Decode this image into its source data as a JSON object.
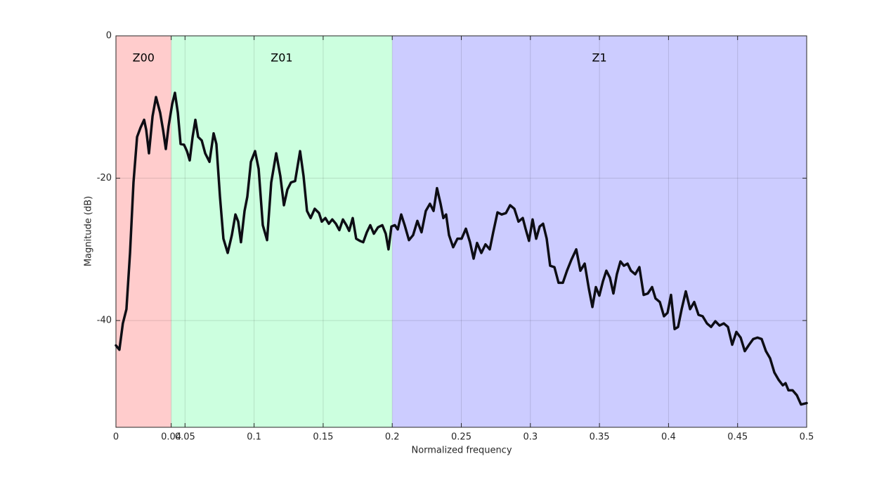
{
  "chart_data": {
    "type": "line",
    "xlabel": "Normalized frequency",
    "ylabel": "Magnitude (dB)",
    "xlim": [
      0,
      0.5
    ],
    "ylim": [
      -55,
      0
    ],
    "xticks": [
      0,
      0.04,
      0.05,
      0.1,
      0.15,
      0.2,
      0.25,
      0.3,
      0.35,
      0.4,
      0.45,
      0.5
    ],
    "yticks": [
      0,
      -20,
      -40
    ],
    "grid": true,
    "regions": [
      {
        "name": "Z00",
        "start": 0,
        "end": 0.04,
        "color": "#ffcccc"
      },
      {
        "name": "Z01",
        "start": 0.04,
        "end": 0.2,
        "color": "#ccffdf"
      },
      {
        "name": "Z1",
        "start": 0.2,
        "end": 0.5,
        "color": "#ccccff"
      }
    ],
    "x": [
      0,
      0.0025,
      0.005,
      0.0076,
      0.0102,
      0.0127,
      0.0153,
      0.0178,
      0.0204,
      0.0219,
      0.0239,
      0.0265,
      0.029,
      0.032,
      0.0341,
      0.0361,
      0.0381,
      0.0407,
      0.0427,
      0.0448,
      0.0468,
      0.0493,
      0.0514,
      0.0534,
      0.0555,
      0.0575,
      0.0595,
      0.0621,
      0.0646,
      0.0677,
      0.0707,
      0.0727,
      0.0753,
      0.0778,
      0.0809,
      0.0839,
      0.0865,
      0.0885,
      0.0905,
      0.0931,
      0.0951,
      0.0977,
      0.1007,
      0.1033,
      0.1063,
      0.1094,
      0.1124,
      0.116,
      0.119,
      0.1216,
      0.1241,
      0.1267,
      0.1297,
      0.1333,
      0.1358,
      0.1383,
      0.1409,
      0.1439,
      0.147,
      0.149,
      0.1516,
      0.1541,
      0.1566,
      0.1592,
      0.1617,
      0.1643,
      0.1668,
      0.1688,
      0.1714,
      0.1739,
      0.1765,
      0.179,
      0.1816,
      0.1841,
      0.1867,
      0.1897,
      0.1928,
      0.1953,
      0.1973,
      0.1994,
      0.2019,
      0.204,
      0.2065,
      0.209,
      0.2121,
      0.2151,
      0.2182,
      0.2212,
      0.2243,
      0.2273,
      0.2299,
      0.2324,
      0.235,
      0.237,
      0.239,
      0.2411,
      0.2441,
      0.2472,
      0.2502,
      0.2533,
      0.2563,
      0.2589,
      0.2614,
      0.2645,
      0.2675,
      0.2706,
      0.2731,
      0.2762,
      0.2792,
      0.2823,
      0.2853,
      0.2884,
      0.2914,
      0.2945,
      0.2965,
      0.299,
      0.3016,
      0.3042,
      0.3067,
      0.3092,
      0.3118,
      0.3143,
      0.3174,
      0.3204,
      0.3235,
      0.3265,
      0.3296,
      0.3332,
      0.3362,
      0.3393,
      0.3423,
      0.3449,
      0.3474,
      0.3499,
      0.3525,
      0.355,
      0.3576,
      0.3601,
      0.3626,
      0.3652,
      0.3677,
      0.3703,
      0.3728,
      0.3759,
      0.3789,
      0.382,
      0.385,
      0.3881,
      0.3906,
      0.3937,
      0.3967,
      0.3993,
      0.4018,
      0.4044,
      0.4069,
      0.4095,
      0.4125,
      0.4156,
      0.4186,
      0.4217,
      0.4247,
      0.4278,
      0.4308,
      0.4339,
      0.4369,
      0.44,
      0.443,
      0.4461,
      0.4491,
      0.4522,
      0.4552,
      0.4583,
      0.4613,
      0.4644,
      0.4674,
      0.4705,
      0.4735,
      0.4766,
      0.4796,
      0.4827,
      0.4847,
      0.4868,
      0.4898,
      0.4929,
      0.4959,
      0.5
    ],
    "series": [
      {
        "color": "#0d0d14",
        "values": [
          -43.5,
          -44.1,
          -40.4,
          -38.4,
          -30.5,
          -20.6,
          -14.2,
          -12.9,
          -11.8,
          -13.2,
          -16.5,
          -11.3,
          -8.6,
          -10.8,
          -13.2,
          -15.9,
          -12.7,
          -9.6,
          -8.0,
          -10.8,
          -15.2,
          -15.3,
          -16.2,
          -17.5,
          -14.2,
          -11.8,
          -14.2,
          -14.7,
          -16.5,
          -17.7,
          -13.7,
          -15.2,
          -22.6,
          -28.5,
          -30.5,
          -28.0,
          -25.1,
          -26.1,
          -29.0,
          -24.6,
          -22.6,
          -17.7,
          -16.2,
          -18.7,
          -26.6,
          -28.7,
          -20.6,
          -16.5,
          -19.7,
          -23.8,
          -21.6,
          -20.6,
          -20.4,
          -16.2,
          -19.7,
          -24.6,
          -25.6,
          -24.3,
          -24.9,
          -26.1,
          -25.6,
          -26.4,
          -25.8,
          -26.4,
          -27.3,
          -25.8,
          -26.6,
          -27.4,
          -25.6,
          -28.5,
          -28.8,
          -29.0,
          -27.6,
          -26.6,
          -27.8,
          -26.9,
          -26.6,
          -27.8,
          -30.0,
          -26.8,
          -26.6,
          -27.2,
          -25.1,
          -26.6,
          -28.7,
          -28.0,
          -26.0,
          -27.6,
          -24.6,
          -23.6,
          -24.6,
          -21.4,
          -23.6,
          -25.6,
          -25.1,
          -28.0,
          -29.7,
          -28.5,
          -28.5,
          -27.1,
          -29.0,
          -31.3,
          -29.1,
          -30.5,
          -29.3,
          -30.0,
          -27.6,
          -24.8,
          -25.1,
          -24.9,
          -23.8,
          -24.3,
          -26.1,
          -25.6,
          -27.1,
          -28.8,
          -25.8,
          -28.5,
          -26.8,
          -26.4,
          -28.5,
          -32.3,
          -32.5,
          -34.7,
          -34.7,
          -33.0,
          -31.5,
          -30.0,
          -33.0,
          -32.0,
          -35.5,
          -38.1,
          -35.3,
          -36.5,
          -34.5,
          -33.0,
          -34.0,
          -36.2,
          -33.5,
          -31.7,
          -32.3,
          -32.0,
          -33.0,
          -33.5,
          -32.5,
          -36.4,
          -36.2,
          -35.3,
          -36.9,
          -37.4,
          -39.4,
          -38.9,
          -36.4,
          -41.2,
          -40.9,
          -38.4,
          -35.9,
          -38.4,
          -37.4,
          -39.2,
          -39.4,
          -40.4,
          -40.9,
          -40.1,
          -40.7,
          -40.4,
          -40.9,
          -43.4,
          -41.6,
          -42.4,
          -44.3,
          -43.4,
          -42.6,
          -42.4,
          -42.6,
          -44.3,
          -45.3,
          -47.3,
          -48.3,
          -49.1,
          -48.8,
          -49.8,
          -49.8,
          -50.5,
          -51.8,
          -51.6
        ]
      }
    ]
  }
}
